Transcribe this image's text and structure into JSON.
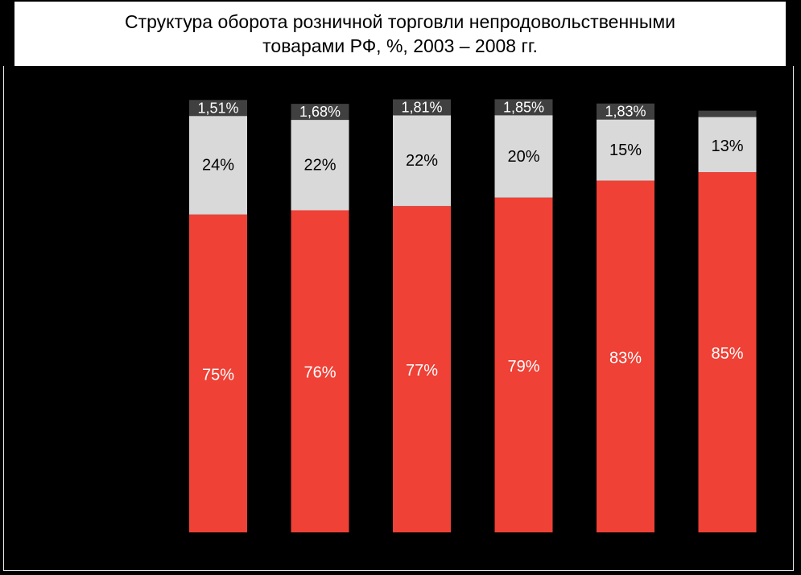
{
  "title_lines": [
    "Структура оборота розничной торговли непродовольственными",
    "товарами РФ, %, 2003 – 2008 гг."
  ],
  "colors": {
    "background": "#000000",
    "series_bottom": "#ef4136",
    "series_middle": "#d9d9d9",
    "series_top": "#404040",
    "label_light": "#ffffff",
    "label_dark": "#000000"
  },
  "chart_data": {
    "type": "bar",
    "stacked": true,
    "normalized_100": true,
    "title": "Структура оборота розничной торговли непродовольственными товарами РФ, %, 2003 – 2008 гг.",
    "categories": [
      "",
      "",
      "",
      "",
      "",
      ""
    ],
    "series": [
      {
        "values": [
          75,
          76,
          77,
          79,
          83,
          85
        ],
        "labels": [
          "75%",
          "76%",
          "77%",
          "79%",
          "83%",
          "85%"
        ]
      },
      {
        "values": [
          24,
          22,
          22,
          20,
          15,
          13
        ],
        "labels": [
          "24%",
          "22%",
          "22%",
          "20%",
          "15%",
          "13%"
        ]
      },
      {
        "values": [
          1.51,
          1.68,
          1.81,
          1.85,
          1.83,
          1.5
        ],
        "labels": [
          "1,51%",
          "1,68%",
          "1,81%",
          "1,85%",
          "1,83%",
          ""
        ]
      }
    ],
    "ylim": [
      0,
      100
    ],
    "grid": false,
    "legend": "none",
    "xlabel": "",
    "ylabel": ""
  }
}
